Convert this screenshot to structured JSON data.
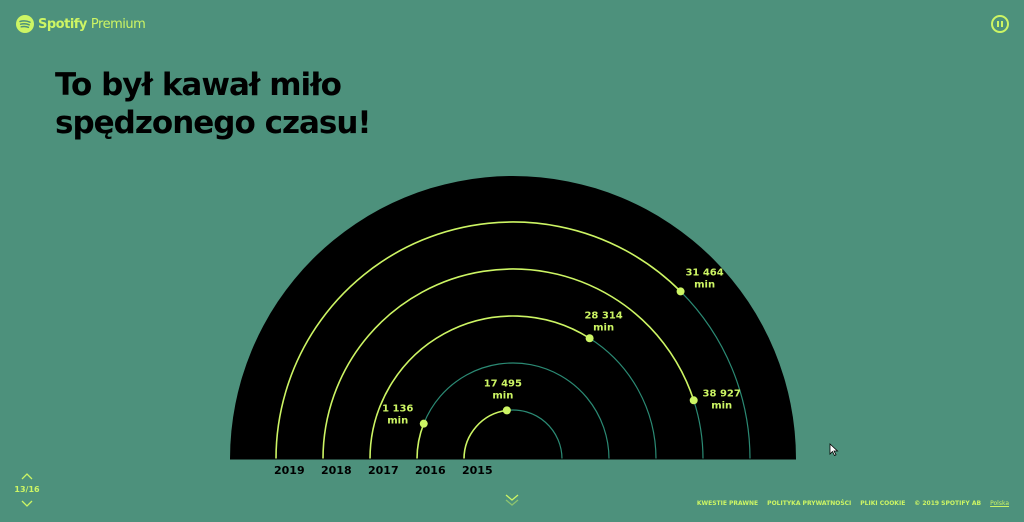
{
  "header": {
    "brand": "Spotify",
    "product": "Premium",
    "pause_icon": "pause-icon"
  },
  "title": "To był kawał miło spędzonego czasu!",
  "colors": {
    "background": "#4d917c",
    "accent": "#cdf564",
    "ring_track": "#2b8a74",
    "disc": "#000000"
  },
  "rings": [
    {
      "year": "2019",
      "value": "31 464",
      "unit": "min",
      "progress": 0.75
    },
    {
      "year": "2018",
      "value": "38 927",
      "unit": "min",
      "progress": 0.9
    },
    {
      "year": "2017",
      "value": "28 314",
      "unit": "min",
      "progress": 0.68
    },
    {
      "year": "2016",
      "value": "1 136",
      "unit": "min",
      "progress": 0.12
    },
    {
      "year": "2015",
      "value": "17 495",
      "unit": "min",
      "progress": 0.46
    }
  ],
  "nav": {
    "page": "13/16"
  },
  "footer": {
    "legal": "KWESTIE PRAWNE",
    "privacy": "POLITYKA PRYWATNOŚCI",
    "cookies": "PLIKI COOKIE",
    "copyright": "© 2019 SPOTIFY AB",
    "language": "Polska"
  }
}
